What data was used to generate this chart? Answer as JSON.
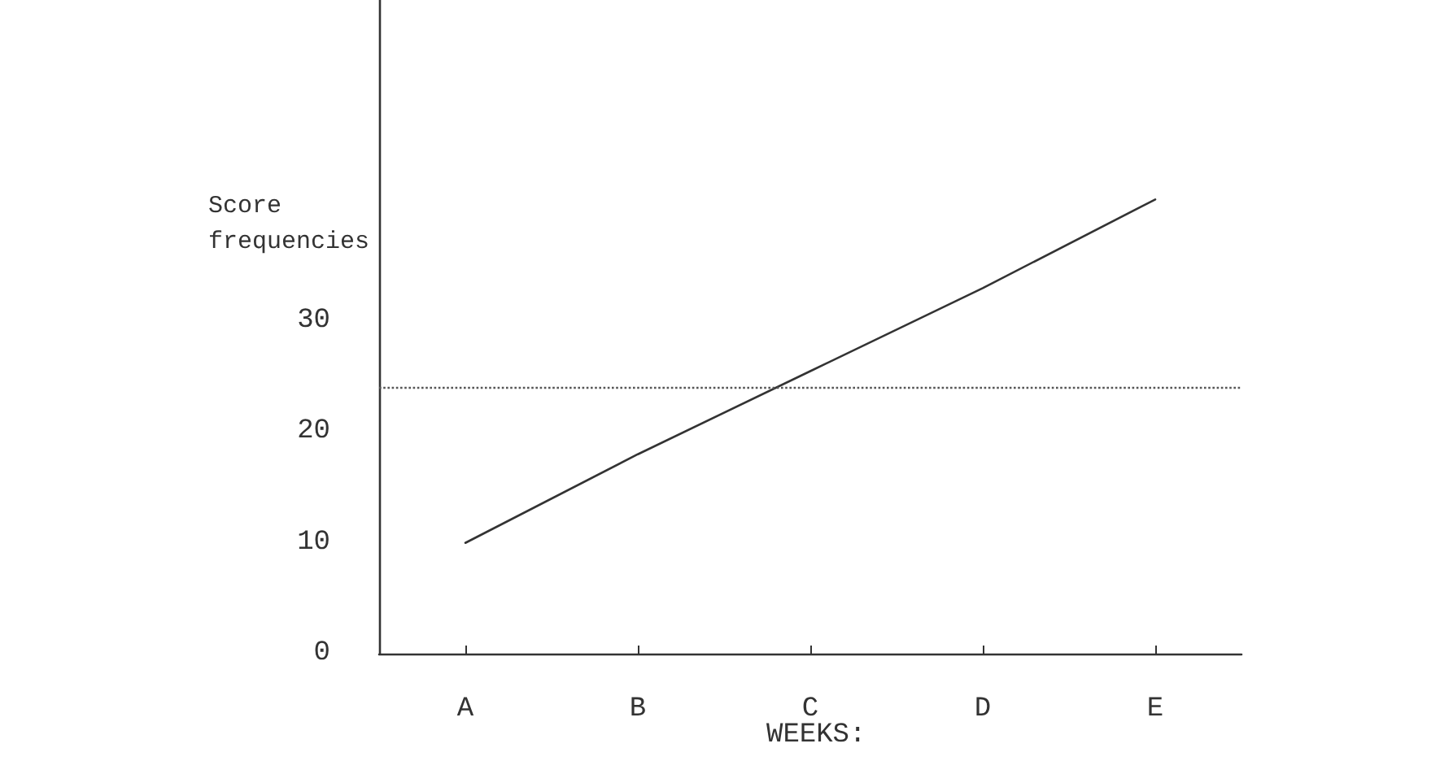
{
  "chart_data": {
    "type": "line",
    "xlabel": "WEEKS:",
    "ylabel": "Score frequencies",
    "categories": [
      "A",
      "B",
      "C",
      "D",
      "E"
    ],
    "series": [
      {
        "color": "#333333",
        "values": [
          10,
          18,
          25.5,
          33,
          41
        ]
      }
    ],
    "ylim": [
      0,
      59
    ],
    "yticks": [
      0,
      10,
      20,
      30
    ],
    "ref_lines": [
      {
        "axis": "y",
        "value": 24,
        "color": "#555555",
        "line_style": "dotted"
      }
    ],
    "marker": "none",
    "line_style": "solid",
    "grid": false
  }
}
